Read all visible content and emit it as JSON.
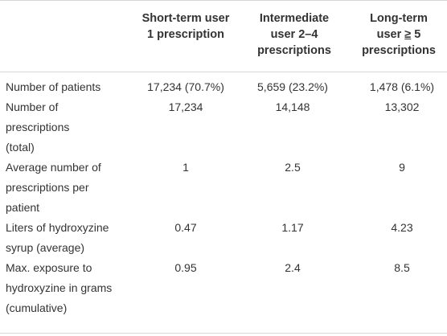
{
  "table": {
    "headers": [
      {
        "lines": [
          "Short-term user",
          "1 prescription"
        ]
      },
      {
        "lines": [
          "Intermediate",
          "user 2–4",
          "prescriptions"
        ]
      },
      {
        "lines_prefix": "Long-term",
        "line2_a": "user ",
        "line2_sym": "≥",
        "line2_b": " 5",
        "line3": "prescriptions"
      }
    ],
    "rows": [
      {
        "label": [
          "Number of patients"
        ],
        "values": [
          "17,234 (70.7%)",
          "5,659 (23.2%)",
          "1,478 (6.1%)"
        ]
      },
      {
        "label": [
          "Number of",
          "prescriptions",
          "(total)"
        ],
        "values": [
          "17,234",
          "14,148",
          "13,302"
        ]
      },
      {
        "label": [
          "Average number of",
          "prescriptions per",
          "patient"
        ],
        "values": [
          "1",
          "2.5",
          "9"
        ]
      },
      {
        "label": [
          "Liters of hydroxyzine",
          "syrup (average)"
        ],
        "values": [
          "0.47",
          "1.17",
          "4.23"
        ]
      },
      {
        "label": [
          "Max. exposure to",
          "hydroxyzine in grams",
          "(cumulative)"
        ],
        "values": [
          "0.95",
          "2.4",
          "8.5"
        ]
      }
    ]
  }
}
